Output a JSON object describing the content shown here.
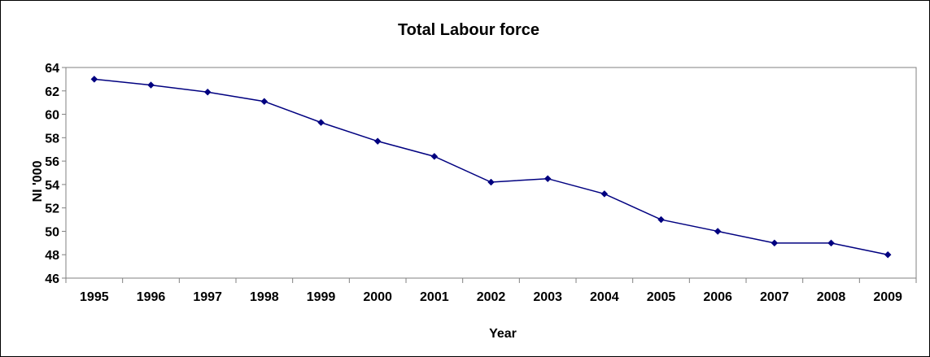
{
  "chart_data": {
    "type": "line",
    "title": "Total Labour force",
    "xlabel": "Year",
    "ylabel": "NI '000",
    "categories": [
      "1995",
      "1996",
      "1997",
      "1998",
      "1999",
      "2000",
      "2001",
      "2002",
      "2003",
      "2004",
      "2005",
      "2006",
      "2007",
      "2008",
      "2009"
    ],
    "series": [
      {
        "values": [
          63.0,
          62.5,
          61.9,
          61.1,
          59.3,
          57.7,
          56.4,
          54.2,
          54.5,
          53.2,
          51.0,
          50.0,
          49.0,
          49.0,
          48.0
        ]
      }
    ],
    "ylim": [
      46,
      64
    ],
    "yticks": [
      46,
      48,
      50,
      52,
      54,
      56,
      58,
      60,
      62,
      64
    ],
    "grid": false,
    "legend": "none",
    "colors": {
      "line": "#000080",
      "marker": "#000080",
      "axis": "#808080",
      "frame": "#000000",
      "text": "#000000"
    }
  }
}
